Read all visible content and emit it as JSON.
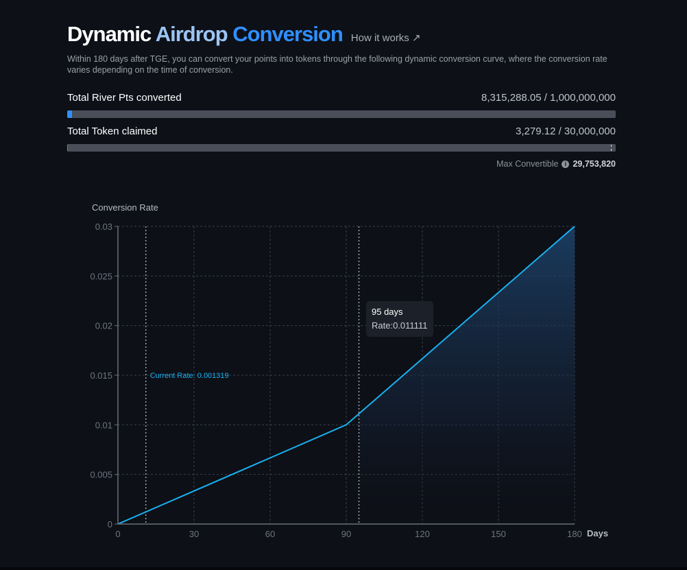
{
  "header": {
    "title_part1": "Dynamic",
    "title_part2": "Airdrop",
    "title_part3": "Conversion",
    "how_link": "How it works ↗",
    "description": "Within 180 days after TGE, you can convert your points into tokens through the following dynamic conversion curve, where the conversion rate varies depending on the time of conversion."
  },
  "stats": {
    "points": {
      "label": "Total River Pts converted",
      "value": "8,315,288.05 / 1,000,000,000",
      "fraction": 0.0083
    },
    "tokens": {
      "label": "Total Token claimed",
      "value": "3,279.12 / 30,000,000",
      "fraction": 0.0001,
      "marker_fraction": 0.9918
    },
    "max_convertible": {
      "label": "Max Convertible",
      "value": "29,753,820"
    }
  },
  "chart_data": {
    "type": "area",
    "ylabel": "Conversion Rate",
    "xlabel": "Days",
    "xlim": [
      0,
      180
    ],
    "ylim": [
      0,
      0.03
    ],
    "x_ticks": [
      "0",
      "30",
      "60",
      "90",
      "120",
      "150",
      "180"
    ],
    "y_ticks": [
      "0",
      "0.005",
      "0.01",
      "0.015",
      "0.02",
      "0.025",
      "0.03"
    ],
    "series": [
      {
        "x": [
          0,
          90,
          180
        ],
        "y": [
          0,
          0.01,
          0.03
        ]
      }
    ],
    "current_rate": {
      "day": 11,
      "label": "Current Rate: 0.001319"
    },
    "tooltip": {
      "day": 95,
      "days_label": "95 days",
      "rate_label": "Rate:0.011111"
    },
    "grid": true,
    "colors": {
      "line": "#1ab0f0",
      "grid": "#3a3f4a",
      "axis_text": "#6f7480"
    }
  }
}
